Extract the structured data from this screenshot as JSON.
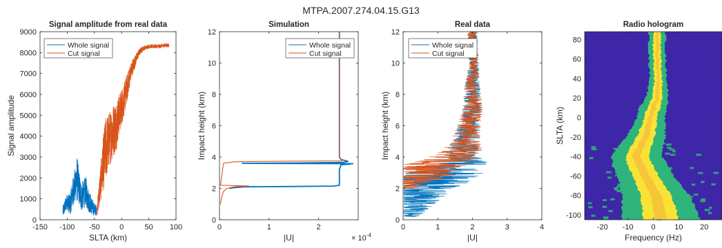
{
  "figure": {
    "suptitle": "MTPA.2007.274.04.15.G13"
  },
  "colors": {
    "whole": "#0072BD",
    "cut": "#D95319",
    "heat_low": "#3E26A8",
    "heat_mid": "#2FB47C",
    "heat_high": "#F9E236",
    "heat_peak": "#F7C53A"
  },
  "chart_data": [
    {
      "type": "line",
      "title": "Signal amplitude from real data",
      "xlabel": "SLTA (km)",
      "ylabel": "Signal amplitude",
      "xlim": [
        -150,
        100
      ],
      "ylim": [
        0,
        9000
      ],
      "xticks": [
        "-150",
        "-100",
        "-50",
        "0",
        "50",
        "100"
      ],
      "yticks": [
        "0",
        "1000",
        "2000",
        "3000",
        "4000",
        "5000",
        "6000",
        "7000",
        "8000",
        "9000"
      ],
      "legend": {
        "position": "top-left",
        "entries": [
          "Whole signal",
          "Cut signal"
        ]
      },
      "series": [
        {
          "name": "Whole signal",
          "style": "noisy",
          "x": [
            -108,
            -100,
            -95,
            -90,
            -86,
            -82,
            -78,
            -74,
            -70,
            -66,
            -62,
            -58,
            -54,
            -50,
            -46
          ],
          "y": [
            400,
            900,
            700,
            1300,
            1600,
            2000,
            1500,
            1100,
            1200,
            1400,
            1000,
            800,
            600,
            500,
            450
          ],
          "noise": [
            300,
            400,
            500,
            700,
            800,
            1100,
            800,
            700,
            700,
            700,
            600,
            500,
            400,
            300,
            250
          ]
        },
        {
          "name": "Cut signal",
          "style": "noisy",
          "x": [
            -45,
            -40,
            -35,
            -30,
            -25,
            -20,
            -15,
            -10,
            -5,
            0,
            5,
            10,
            15,
            20,
            25,
            30,
            35,
            40,
            45,
            50,
            60,
            70,
            80,
            87
          ],
          "y": [
            500,
            1500,
            2500,
            3300,
            3700,
            4000,
            4300,
            4500,
            5000,
            5400,
            5800,
            6300,
            6900,
            7300,
            7600,
            7900,
            8100,
            8200,
            8250,
            8300,
            8300,
            8300,
            8350,
            8350
          ],
          "noise": [
            300,
            800,
            1200,
            1600,
            1400,
            1300,
            1300,
            1200,
            1000,
            900,
            800,
            700,
            500,
            400,
            300,
            200,
            150,
            120,
            100,
            100,
            100,
            100,
            100,
            100
          ]
        }
      ]
    },
    {
      "type": "line",
      "title": "Simulation",
      "xlabel": "|U|",
      "ylabel": "Impact height (km)",
      "xlim": [
        0,
        2.8
      ],
      "ylim": [
        0,
        12
      ],
      "xticks": [
        "0",
        "1",
        "2"
      ],
      "yticks": [
        "0",
        "2",
        "4",
        "6",
        "8",
        "10",
        "12"
      ],
      "x_exponent_label": "× 10",
      "x_exponent": "-4",
      "legend": {
        "position": "top-right",
        "entries": [
          "Whole signal",
          "Cut signal"
        ]
      },
      "series": [
        {
          "name": "Whole signal",
          "style": "line",
          "x": [
            2.42,
            2.42,
            2.45,
            2.6,
            2.5,
            1.6,
            0.45,
            2.7,
            2.45,
            2.42,
            2.42,
            2.3,
            1.3,
            0.5,
            0.3,
            0.2
          ],
          "y": [
            12,
            4.0,
            3.85,
            3.72,
            3.66,
            3.62,
            3.6,
            3.58,
            3.5,
            3.2,
            2.2,
            2.15,
            2.12,
            2.1,
            2.05,
            2.0
          ]
        },
        {
          "name": "Cut signal",
          "style": "line",
          "x": [
            2.42,
            2.42,
            2.46,
            2.5,
            2.4,
            1.5,
            0.7,
            0.3,
            0.08,
            0.02,
            0.6,
            0.3,
            0.15,
            0.08,
            0.04,
            0.02
          ],
          "y": [
            12,
            4.0,
            3.85,
            3.78,
            3.76,
            3.74,
            3.72,
            3.7,
            3.6,
            2.2,
            2.15,
            2.1,
            2.0,
            1.8,
            1.4,
            1.0
          ]
        }
      ]
    },
    {
      "type": "line",
      "title": "Real data",
      "xlabel": "|U|",
      "ylabel": "Impact height (km)",
      "xlim": [
        0,
        4
      ],
      "ylim": [
        0,
        12
      ],
      "xticks": [
        "0",
        "1",
        "2",
        "3",
        "4"
      ],
      "yticks": [
        "0",
        "2",
        "4",
        "6",
        "8",
        "10",
        "12"
      ],
      "legend": {
        "position": "top-left",
        "entries": [
          "Whole signal",
          "Cut signal"
        ]
      },
      "series": [
        {
          "name": "Whole signal",
          "style": "noisy-vertical",
          "x": [
            0.2,
            0.3,
            0.5,
            0.6,
            0.8,
            1.0,
            1.4,
            1.6,
            1.7,
            1.8,
            1.9,
            2.0,
            2.0,
            2.0,
            2.05,
            2.0,
            2.0
          ],
          "y": [
            0.2,
            0.8,
            1.4,
            2.0,
            2.4,
            2.8,
            3.2,
            3.6,
            4.0,
            5.0,
            6.0,
            7.0,
            8.0,
            9.0,
            10.0,
            11.0,
            12.0
          ],
          "noise": [
            0.3,
            0.5,
            0.7,
            0.9,
            1.2,
            1.3,
            1.0,
            0.9,
            0.6,
            0.4,
            0.35,
            0.3,
            0.25,
            0.2,
            0.15,
            0.15,
            0.15
          ]
        },
        {
          "name": "Cut signal",
          "style": "noisy-vertical",
          "x": [
            0.1,
            0.2,
            0.4,
            0.6,
            1.0,
            1.5,
            1.7,
            1.8,
            1.9,
            2.0,
            2.0,
            2.0,
            2.05,
            2.0,
            2.0
          ],
          "y": [
            2.0,
            2.4,
            2.8,
            3.2,
            3.6,
            4.0,
            4.5,
            5.0,
            6.0,
            7.0,
            8.0,
            9.0,
            10.0,
            11.0,
            12.0
          ],
          "noise": [
            0.3,
            0.6,
            1.0,
            1.1,
            1.0,
            0.8,
            0.6,
            0.45,
            0.35,
            0.3,
            0.25,
            0.2,
            0.15,
            0.15,
            0.15
          ]
        }
      ]
    },
    {
      "type": "heatmap",
      "title": "Radio hologram",
      "xlabel": "Frequency (Hz)",
      "ylabel": "SLTA (km)",
      "xlim": [
        -27,
        27
      ],
      "ylim": [
        -105,
        88
      ],
      "xticks": [
        "-20",
        "-10",
        "0",
        "10",
        "20"
      ],
      "yticks": [
        "-100",
        "-80",
        "-60",
        "-40",
        "-20",
        "0",
        "20",
        "40",
        "60",
        "80"
      ],
      "ridge": {
        "slta": [
          88,
          60,
          40,
          20,
          10,
          0,
          -10,
          -20,
          -30,
          -40,
          -50,
          -60,
          -70,
          -80,
          -90,
          -105
        ],
        "freq": [
          1.5,
          1.5,
          2.0,
          1.5,
          0,
          -1.0,
          -2.0,
          -3.0,
          -5.0,
          -6.5,
          -5.0,
          -3.0,
          -1.0,
          1.0,
          2.0,
          3.0
        ],
        "width": [
          1.5,
          1.5,
          1.5,
          2.0,
          2.5,
          2.5,
          3.0,
          3.5,
          4.0,
          4.5,
          5.0,
          5.0,
          5.5,
          6.0,
          6.5,
          7.0
        ]
      },
      "speckle": {
        "slta_min": -105,
        "slta_max": -25,
        "freq_min": -27,
        "freq_max": 27
      }
    }
  ]
}
